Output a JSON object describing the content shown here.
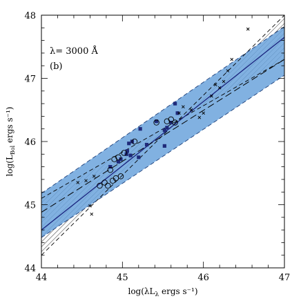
{
  "chart_data": {
    "type": "scatter",
    "xlabel": "log(λL",
    "xlabel_sub": "λ",
    "xlabel_rest": " ergs s⁻¹)",
    "ylabel": "log(L",
    "ylabel_sub": "Bol",
    "ylabel_rest": " ergs s⁻¹)",
    "xlim": [
      44,
      47
    ],
    "ylim": [
      44,
      48
    ],
    "xticks": [
      "44",
      "45",
      "46",
      "47"
    ],
    "yticks": [
      "44",
      "45",
      "46",
      "47",
      "48"
    ],
    "annotations": [
      "λ= 3000 Å",
      "(b)"
    ],
    "lines": {
      "fit_solid": [
        [
          44,
          44.6
        ],
        [
          47,
          47.65
        ]
      ],
      "fit_dashed": [
        [
          44,
          44.88
        ],
        [
          47,
          47.3
        ]
      ]
    },
    "bands": {
      "hatched_upper": [
        [
          44,
          44.2
        ],
        [
          47,
          48.0
        ]
      ],
      "hatched_lower": [
        [
          44,
          45.1
        ],
        [
          47,
          47.3
        ]
      ],
      "blue_upper": [
        [
          44,
          45.18
        ],
        [
          47,
          47.82
        ]
      ],
      "blue_lower": [
        [
          44,
          44.48
        ],
        [
          47,
          47.05
        ]
      ]
    },
    "series": [
      {
        "marker": "filled-square",
        "color": "#1f2a7a",
        "points": [
          [
            44.85,
            45.6
          ],
          [
            44.95,
            45.68
          ],
          [
            44.98,
            45.72
          ],
          [
            45.05,
            45.8
          ],
          [
            45.08,
            45.97
          ],
          [
            45.12,
            46.0
          ],
          [
            45.2,
            45.75
          ],
          [
            45.22,
            46.2
          ],
          [
            45.3,
            45.95
          ],
          [
            45.42,
            46.32
          ],
          [
            45.52,
            46.18
          ],
          [
            45.55,
            46.22
          ],
          [
            45.6,
            46.3
          ],
          [
            45.65,
            46.6
          ],
          [
            45.68,
            46.45
          ],
          [
            45.52,
            45.93
          ],
          [
            45.1,
            45.78
          ],
          [
            45.06,
            45.85
          ]
        ]
      },
      {
        "marker": "open-circle",
        "color": "#000000",
        "points": [
          [
            44.72,
            45.3
          ],
          [
            44.78,
            45.35
          ],
          [
            44.82,
            45.3
          ],
          [
            44.88,
            45.38
          ],
          [
            44.92,
            45.42
          ],
          [
            44.98,
            45.45
          ],
          [
            44.85,
            45.55
          ],
          [
            44.9,
            45.72
          ],
          [
            44.95,
            45.75
          ],
          [
            45.02,
            45.82
          ],
          [
            45.15,
            46.0
          ],
          [
            45.42,
            46.3
          ],
          [
            45.55,
            46.32
          ],
          [
            45.6,
            46.35
          ],
          [
            45.65,
            46.3
          ]
        ]
      },
      {
        "marker": "cross",
        "color": "#000000",
        "points": [
          [
            44.45,
            45.35
          ],
          [
            44.55,
            45.38
          ],
          [
            44.6,
            44.98
          ],
          [
            44.62,
            44.85
          ],
          [
            44.65,
            45.45
          ],
          [
            45.7,
            46.45
          ],
          [
            45.75,
            46.55
          ],
          [
            45.85,
            46.5
          ],
          [
            45.95,
            46.38
          ],
          [
            46.0,
            46.45
          ],
          [
            46.1,
            46.72
          ],
          [
            46.15,
            46.9
          ],
          [
            46.2,
            46.85
          ],
          [
            46.25,
            46.95
          ],
          [
            46.3,
            47.12
          ],
          [
            46.35,
            47.3
          ],
          [
            46.55,
            47.78
          ]
        ]
      }
    ]
  }
}
